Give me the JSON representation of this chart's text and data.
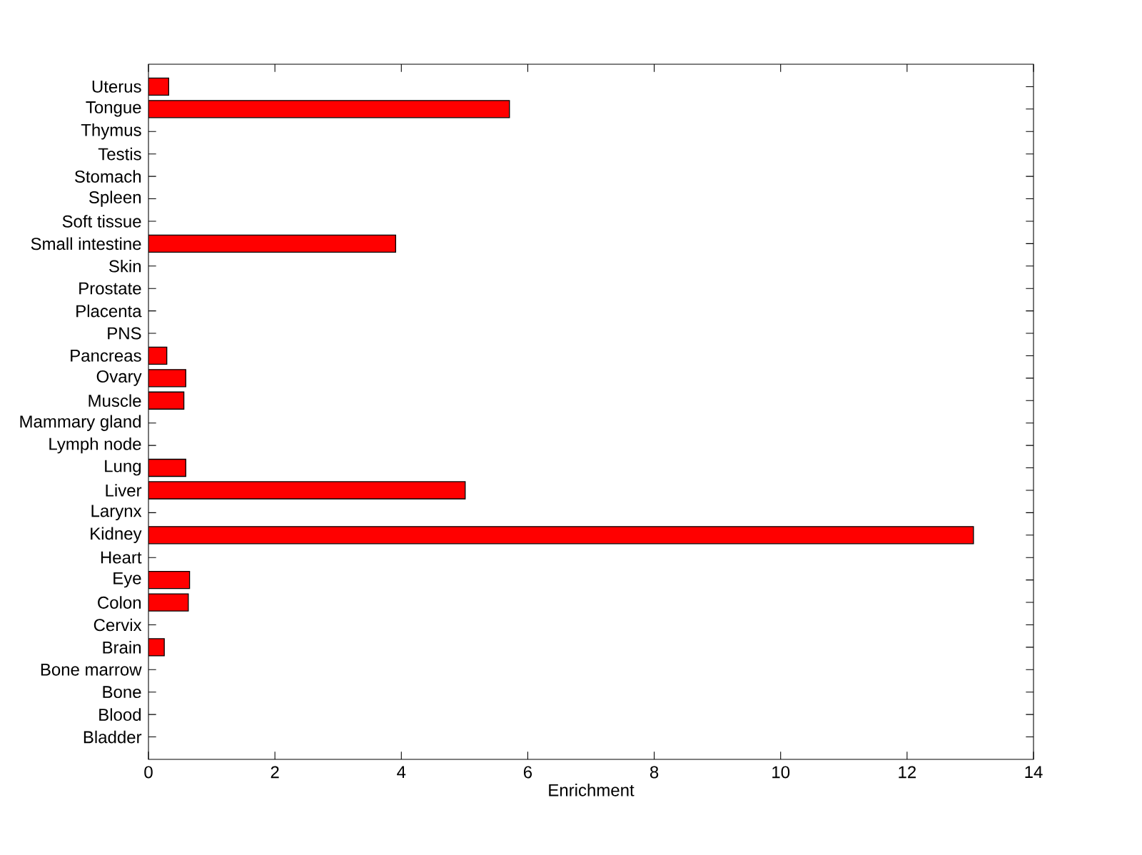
{
  "chart_data": {
    "type": "bar",
    "orientation": "horizontal",
    "xlabel": "Enrichment",
    "categories": [
      "Uterus",
      "Tongue",
      "Thymus",
      "Testis",
      "Stomach",
      "Spleen",
      "Soft tissue",
      "Small intestine",
      "Skin",
      "Prostate",
      "Placenta",
      "PNS",
      "Pancreas",
      "Ovary",
      "Muscle",
      "Mammary gland",
      "Lymph node",
      "Lung",
      "Liver",
      "Larynx",
      "Kidney",
      "Heart",
      "Eye",
      "Colon",
      "Cervix",
      "Brain",
      "Bone marrow",
      "Bone",
      "Blood",
      "Bladder"
    ],
    "values": [
      0.32,
      5.71,
      0,
      0,
      0,
      0,
      0,
      3.91,
      0,
      0,
      0,
      0,
      0.29,
      0.59,
      0.56,
      0,
      0,
      0.59,
      5.01,
      0,
      13.05,
      0,
      0.65,
      0.63,
      0,
      0.25,
      0,
      0,
      0,
      0
    ],
    "color": "#ff0000",
    "xlim": [
      0,
      14
    ],
    "xticks": [
      0,
      2,
      4,
      6,
      8,
      10,
      12,
      14
    ]
  }
}
